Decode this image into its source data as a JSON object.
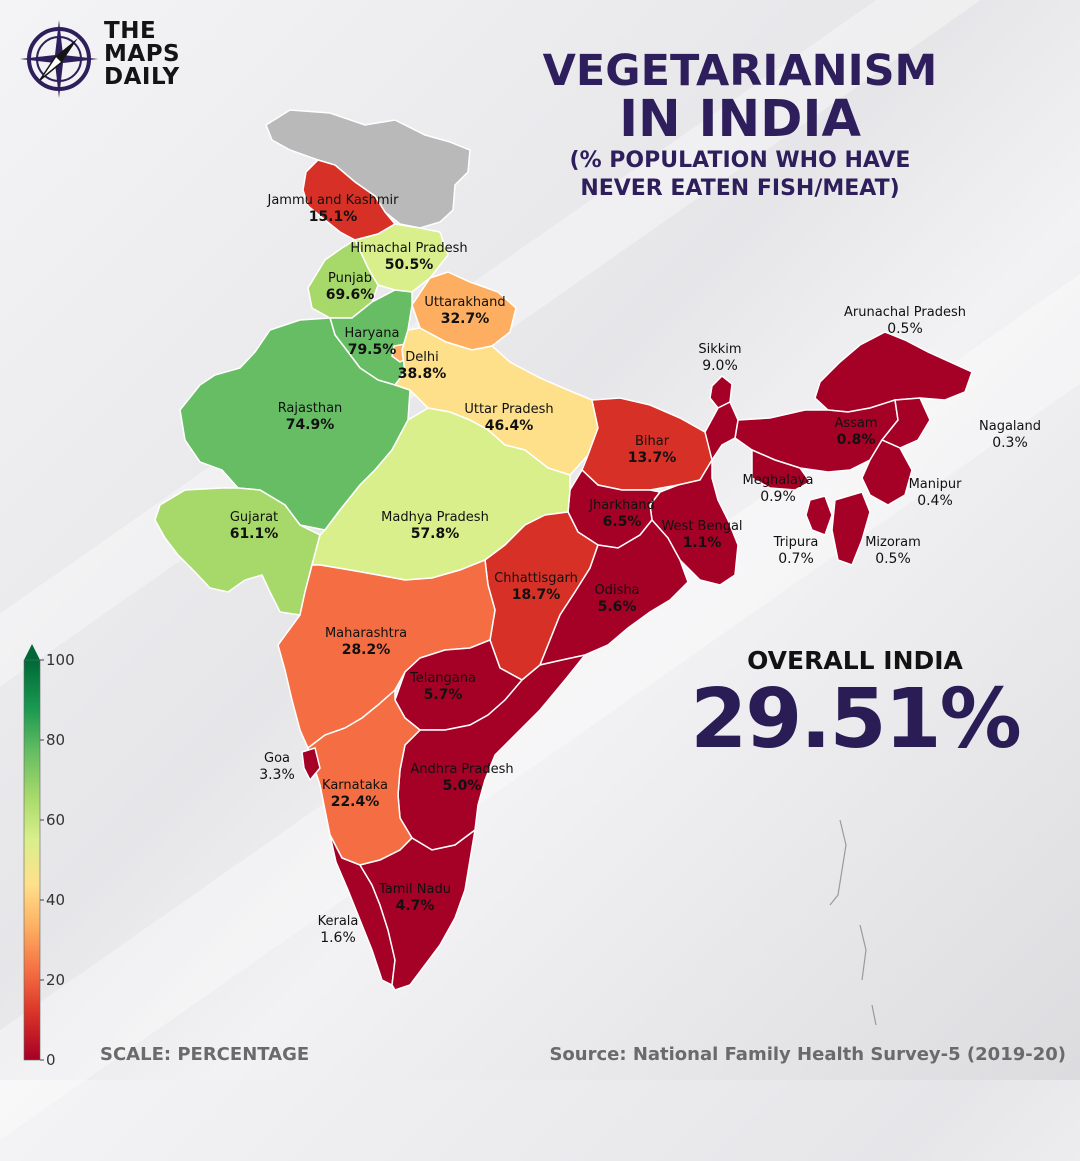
{
  "logo": {
    "line1": "THE",
    "line2": "MAPS",
    "line3": "DAILY"
  },
  "title": {
    "line1": "VEGETARIANISM",
    "line2": "IN INDIA",
    "line3": "(% POPULATION WHO HAVE",
    "line4": "NEVER EATEN FISH/MEAT)"
  },
  "overall": {
    "label": "OVERALL INDIA",
    "value": "29.51%"
  },
  "footer": {
    "scale_caption": "SCALE: PERCENTAGE",
    "source": "Source: National Family Health Survey-5 (2019-20)"
  },
  "colors": {
    "title": "#2e1f5c",
    "no_data": "#b9b9b9",
    "ramp": [
      "#a50026",
      "#d73027",
      "#f46d43",
      "#fdae61",
      "#fee08b",
      "#d9ef8b",
      "#a6d96a",
      "#66bd63",
      "#1a9850",
      "#006837"
    ]
  },
  "chart_data": {
    "type": "choropleth",
    "legend": {
      "ticks": [
        "0",
        "20",
        "40",
        "60",
        "80",
        "100"
      ],
      "range": [
        0,
        100
      ]
    },
    "regions": [
      {
        "name": "Jammu and Kashmir",
        "value": "15.1%",
        "v": 15.1
      },
      {
        "name": "Himachal Pradesh",
        "value": "50.5%",
        "v": 50.5
      },
      {
        "name": "Punjab",
        "value": "69.6%",
        "v": 69.6
      },
      {
        "name": "Uttarakhand",
        "value": "32.7%",
        "v": 32.7
      },
      {
        "name": "Haryana",
        "value": "79.5%",
        "v": 79.5
      },
      {
        "name": "Delhi",
        "value": "38.8%",
        "v": 38.8
      },
      {
        "name": "Rajasthan",
        "value": "74.9%",
        "v": 74.9
      },
      {
        "name": "Uttar Pradesh",
        "value": "46.4%",
        "v": 46.4
      },
      {
        "name": "Bihar",
        "value": "13.7%",
        "v": 13.7
      },
      {
        "name": "Sikkim",
        "value": "9.0%",
        "v": 9.0
      },
      {
        "name": "Arunachal Pradesh",
        "value": "0.5%",
        "v": 0.5
      },
      {
        "name": "Assam",
        "value": "0.8%",
        "v": 0.8
      },
      {
        "name": "Nagaland",
        "value": "0.3%",
        "v": 0.3
      },
      {
        "name": "Meghalaya",
        "value": "0.9%",
        "v": 0.9
      },
      {
        "name": "Manipur",
        "value": "0.4%",
        "v": 0.4
      },
      {
        "name": "Tripura",
        "value": "0.7%",
        "v": 0.7
      },
      {
        "name": "Mizoram",
        "value": "0.5%",
        "v": 0.5
      },
      {
        "name": "Gujarat",
        "value": "61.1%",
        "v": 61.1
      },
      {
        "name": "Madhya Pradesh",
        "value": "57.8%",
        "v": 57.8
      },
      {
        "name": "Jharkhand",
        "value": "6.5%",
        "v": 6.5
      },
      {
        "name": "West Bengal",
        "value": "1.1%",
        "v": 1.1
      },
      {
        "name": "Chhattisgarh",
        "value": "18.7%",
        "v": 18.7
      },
      {
        "name": "Odisha",
        "value": "5.6%",
        "v": 5.6
      },
      {
        "name": "Maharashtra",
        "value": "28.2%",
        "v": 28.2
      },
      {
        "name": "Telangana",
        "value": "5.7%",
        "v": 5.7
      },
      {
        "name": "Goa",
        "value": "3.3%",
        "v": 3.3
      },
      {
        "name": "Karnataka",
        "value": "22.4%",
        "v": 22.4
      },
      {
        "name": "Andhra Pradesh",
        "value": "5.0%",
        "v": 5.0
      },
      {
        "name": "Kerala",
        "value": "1.6%",
        "v": 1.6
      },
      {
        "name": "Tamil Nadu",
        "value": "4.7%",
        "v": 4.7
      }
    ]
  }
}
